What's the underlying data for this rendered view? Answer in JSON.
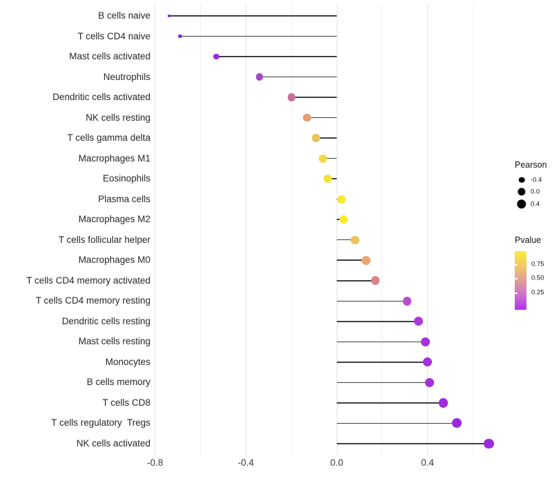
{
  "chart_data": {
    "type": "lollipop",
    "title": "",
    "xlabel": "",
    "ylabel": "",
    "x_tick_labels": [
      "-0.8",
      "-0.4",
      "0.0",
      "0.4"
    ],
    "x_ticks": [
      -0.8,
      -0.4,
      0.0,
      0.4
    ],
    "x_minor_ticks": [
      -0.6,
      -0.2,
      0.2,
      0.6
    ],
    "xlim": [
      -0.81,
      0.76
    ],
    "grid": "vertical-only",
    "stem_color": "#3d3d3d",
    "rows": [
      {
        "label": "B cells naive",
        "pearson": -0.74,
        "dot_color": "#7b28d8",
        "dot_radius": 2.0
      },
      {
        "label": "T cells CD4 naive",
        "pearson": -0.69,
        "dot_color": "#8829dc",
        "dot_radius": 2.7
      },
      {
        "label": "Mast cells activated",
        "pearson": -0.53,
        "dot_color": "#9a2cd9",
        "dot_radius": 4.3
      },
      {
        "label": "Neutrophils",
        "pearson": -0.34,
        "dot_color": "#a347ca",
        "dot_radius": 5.2
      },
      {
        "label": "Dendritic cells activated",
        "pearson": -0.2,
        "dot_color": "#c9709d",
        "dot_radius": 5.6
      },
      {
        "label": "NK cells resting",
        "pearson": -0.13,
        "dot_color": "#e69d6c",
        "dot_radius": 5.8
      },
      {
        "label": "T cells gamma delta",
        "pearson": -0.09,
        "dot_color": "#edc257",
        "dot_radius": 5.9
      },
      {
        "label": "Macrophages M1",
        "pearson": -0.06,
        "dot_color": "#f1d944",
        "dot_radius": 6.0
      },
      {
        "label": "Eosinophils",
        "pearson": -0.04,
        "dot_color": "#f2e13a",
        "dot_radius": 6.0
      },
      {
        "label": "Plasma cells",
        "pearson": 0.02,
        "dot_color": "#f8ea28",
        "dot_radius": 6.0
      },
      {
        "label": "Macrophages M2",
        "pearson": 0.03,
        "dot_color": "#f8ea28",
        "dot_radius": 6.1
      },
      {
        "label": "T cells follicular helper",
        "pearson": 0.08,
        "dot_color": "#edc45b",
        "dot_radius": 6.2
      },
      {
        "label": "Macrophages M0",
        "pearson": 0.13,
        "dot_color": "#eba874",
        "dot_radius": 6.3
      },
      {
        "label": "T cells CD4 memory activated",
        "pearson": 0.17,
        "dot_color": "#de8289",
        "dot_radius": 6.3
      },
      {
        "label": "T cells CD4 memory resting",
        "pearson": 0.31,
        "dot_color": "#ba4cd1",
        "dot_radius": 6.4
      },
      {
        "label": "Dendritic cells resting",
        "pearson": 0.36,
        "dot_color": "#ac38da",
        "dot_radius": 6.5
      },
      {
        "label": "Mast cells resting",
        "pearson": 0.39,
        "dot_color": "#a530dc",
        "dot_radius": 6.5
      },
      {
        "label": "Monocytes",
        "pearson": 0.4,
        "dot_color": "#a32fdd",
        "dot_radius": 6.5
      },
      {
        "label": "B cells memory",
        "pearson": 0.41,
        "dot_color": "#a32fdd",
        "dot_radius": 6.5
      },
      {
        "label": "T cells CD8",
        "pearson": 0.47,
        "dot_color": "#9e2bdf",
        "dot_radius": 6.8
      },
      {
        "label": "T cells regulatory  Tregs",
        "pearson": 0.53,
        "dot_color": "#9c29e0",
        "dot_radius": 7.0
      },
      {
        "label": "NK cells activated",
        "pearson": 0.67,
        "dot_color": "#9d2ae1",
        "dot_radius": 7.2
      }
    ],
    "legend": {
      "size": {
        "title": "Pearson",
        "dot_color": "#000000",
        "entries": [
          {
            "label": "-0.4",
            "radius": 4.3
          },
          {
            "label": "0.0",
            "radius": 5.6
          },
          {
            "label": "0.4",
            "radius": 6.7
          }
        ]
      },
      "color": {
        "title": "Pvalue",
        "tick_labels": [
          "0.75",
          "0.50",
          "0.25"
        ],
        "tick_offsets_pct": [
          23.5,
          47.0,
          71.5
        ],
        "gradient_top_to_bottom": [
          "#faee3a",
          "#f3c767",
          "#e19d96",
          "#cb70ca",
          "#b233f1"
        ]
      }
    }
  }
}
